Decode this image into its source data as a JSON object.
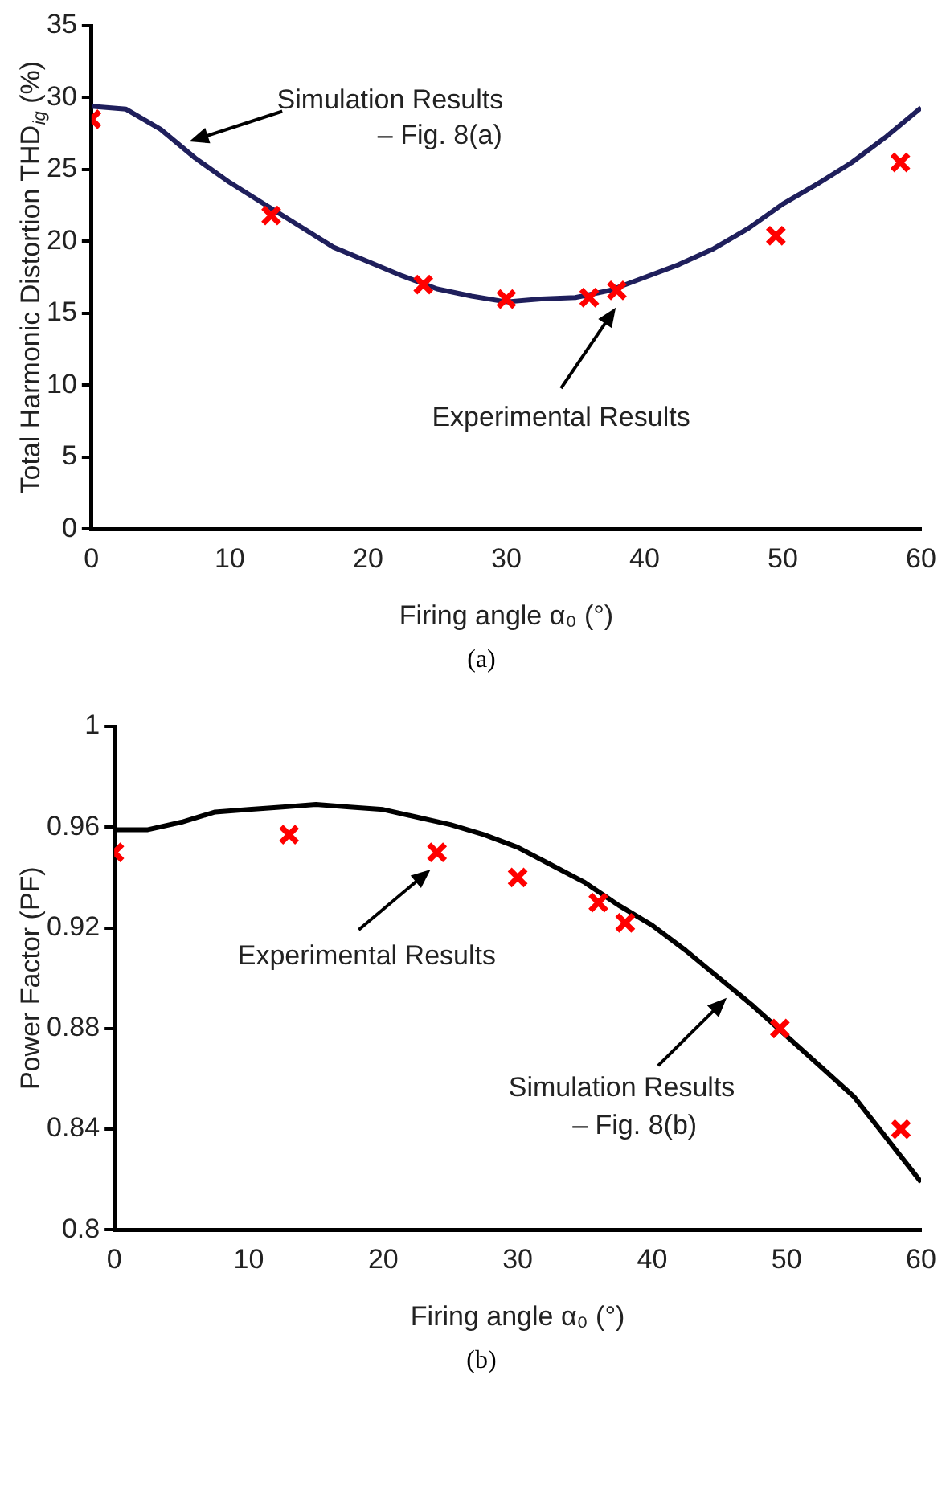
{
  "chart_data": [
    {
      "type": "line",
      "xlabel": "Firing angle α₀ (°)",
      "ylabel": "Total Harmonic Distortion THD$_{ig}$ (%)",
      "xlim": [
        0,
        60
      ],
      "xticks": [
        0,
        10,
        20,
        30,
        40,
        50,
        60
      ],
      "ylim": [
        0,
        35
      ],
      "yticks": [
        0,
        5,
        10,
        15,
        20,
        25,
        30,
        35
      ],
      "grid": false,
      "legend": false,
      "series": [
        {
          "type": "line",
          "color": "#1f1f5c",
          "marker": "none",
          "line_style": "solid",
          "x": [
            0,
            2.5,
            5,
            7.5,
            10,
            12.5,
            15,
            17.5,
            20,
            22.5,
            25,
            27.5,
            30,
            32.5,
            35,
            37.5,
            40,
            42.5,
            45,
            47.5,
            50,
            52.5,
            55,
            57.5,
            60
          ],
          "values": [
            29.4,
            29.2,
            27.8,
            25.8,
            24.1,
            22.6,
            21.1,
            19.6,
            18.6,
            17.6,
            16.7,
            16.2,
            15.8,
            16.0,
            16.1,
            16.6,
            17.5,
            18.4,
            19.5,
            20.9,
            22.6,
            24.0,
            25.5,
            27.3,
            29.3
          ]
        },
        {
          "type": "scatter",
          "color": "#ff0000",
          "marker": "cross",
          "x": [
            0,
            13,
            24,
            30,
            36,
            38,
            49.5,
            58.5
          ],
          "values": [
            28.5,
            21.8,
            17,
            16,
            16.1,
            16.6,
            20.4,
            25.5
          ]
        }
      ],
      "annotations": [
        "Simulation Results\n– Fig. 8(a)",
        "Experimental Results",
        "(a)"
      ]
    },
    {
      "type": "line",
      "xlabel": "Firing angle α₀ (°)",
      "ylabel": "Power Factor (PF)",
      "xlim": [
        0,
        60
      ],
      "xticks": [
        0,
        10,
        20,
        30,
        40,
        50,
        60
      ],
      "ylim": [
        0.8,
        1
      ],
      "yticks": [
        0.8,
        0.84,
        0.88,
        0.92,
        0.96,
        1
      ],
      "grid": false,
      "legend": false,
      "series": [
        {
          "type": "line",
          "color": "#000000",
          "marker": "none",
          "line_style": "solid",
          "x": [
            0,
            2.5,
            5,
            7.5,
            10,
            12.5,
            15,
            17.5,
            20,
            22.5,
            25,
            27.5,
            30,
            32.5,
            35,
            37.5,
            40,
            42.5,
            45,
            47.5,
            50,
            52.5,
            55,
            57.5,
            60
          ],
          "values": [
            0.959,
            0.959,
            0.962,
            0.966,
            0.967,
            0.968,
            0.969,
            0.968,
            0.967,
            0.964,
            0.961,
            0.957,
            0.952,
            0.945,
            0.938,
            0.929,
            0.921,
            0.911,
            0.9,
            0.889,
            0.877,
            0.865,
            0.853,
            0.836,
            0.819
          ]
        },
        {
          "type": "scatter",
          "color": "#ff0000",
          "marker": "cross",
          "x": [
            0,
            13,
            24,
            30,
            36,
            38,
            49.5,
            58.5
          ],
          "values": [
            0.95,
            0.957,
            0.95,
            0.94,
            0.93,
            0.922,
            0.88,
            0.84
          ]
        }
      ],
      "annotations": [
        "Experimental Results",
        "Simulation Results\n– Fig. 8(b)",
        "(b)"
      ]
    }
  ]
}
